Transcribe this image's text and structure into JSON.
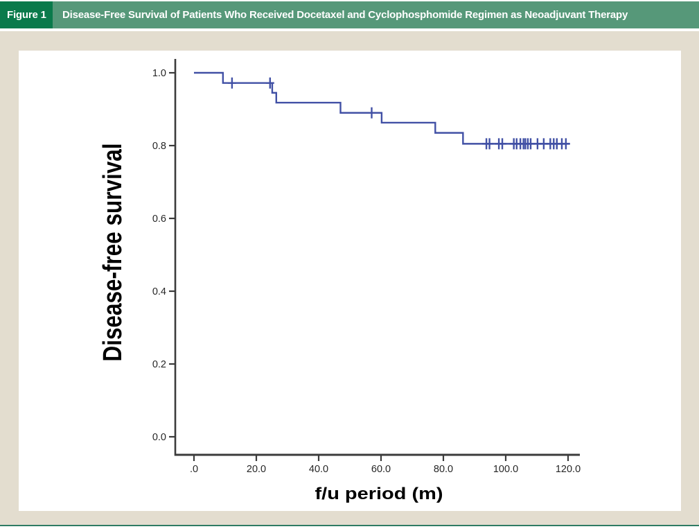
{
  "figure_header": {
    "label": "Figure 1",
    "title": "Disease-Free Survival of Patients Who Received Docetaxel and Cyclophosphomide Regimen as Neoadjuvant Therapy"
  },
  "colors": {
    "header_dark_green": "#0a7a4b",
    "header_light_green": "#569879",
    "page_beige": "#e3ddcf",
    "bottom_rule_green": "#2e7b63",
    "panel_white": "#ffffff",
    "curve_blue": "#4150a5",
    "axis_gray": "#3b3b3b",
    "tick_label_color": "#262626",
    "axis_title_color": "#000000"
  },
  "chart_data": {
    "type": "line",
    "subtype": "kaplan-meier-step-function",
    "title": "",
    "xlabel": "f/u period (m)",
    "ylabel": "Disease-free survival",
    "x_ticks": [
      ".0",
      "20.0",
      "40.0",
      "60.0",
      "80.0",
      "100.0",
      "120.0"
    ],
    "x_tick_values": [
      0,
      20,
      40,
      60,
      80,
      100,
      120
    ],
    "y_ticks": [
      "1.0",
      "0.8",
      "0.6",
      "0.4",
      "0.2",
      "0.0"
    ],
    "y_tick_values": [
      1.0,
      0.8,
      0.6,
      0.4,
      0.2,
      0.0
    ],
    "xlim": [
      0,
      120
    ],
    "ylim": [
      0.0,
      1.0
    ],
    "grid": "off",
    "legend": "none",
    "steps": [
      {
        "x": 0,
        "y": 1.0
      },
      {
        "x": 9.3,
        "y": 0.972
      },
      {
        "x": 25.1,
        "y": 0.945
      },
      {
        "x": 26.4,
        "y": 0.918
      },
      {
        "x": 47.0,
        "y": 0.89
      },
      {
        "x": 60.2,
        "y": 0.863
      },
      {
        "x": 77.4,
        "y": 0.835
      },
      {
        "x": 86.3,
        "y": 0.805
      }
    ],
    "curve_end_x": 120.4,
    "censor_marks": [
      {
        "x": 12.2,
        "y": 0.972
      },
      {
        "x": 24.4,
        "y": 0.972
      },
      {
        "x": 57.0,
        "y": 0.89
      },
      {
        "x": 93.8,
        "y": 0.805
      },
      {
        "x": 94.8,
        "y": 0.805
      },
      {
        "x": 97.8,
        "y": 0.805
      },
      {
        "x": 98.9,
        "y": 0.805
      },
      {
        "x": 102.6,
        "y": 0.805
      },
      {
        "x": 103.5,
        "y": 0.805
      },
      {
        "x": 104.7,
        "y": 0.805
      },
      {
        "x": 105.7,
        "y": 0.805
      },
      {
        "x": 106.3,
        "y": 0.805
      },
      {
        "x": 107.1,
        "y": 0.805
      },
      {
        "x": 108.0,
        "y": 0.805
      },
      {
        "x": 110.2,
        "y": 0.805
      },
      {
        "x": 112.2,
        "y": 0.805
      },
      {
        "x": 114.3,
        "y": 0.805
      },
      {
        "x": 115.4,
        "y": 0.805
      },
      {
        "x": 116.4,
        "y": 0.805
      },
      {
        "x": 118.0,
        "y": 0.805
      },
      {
        "x": 119.3,
        "y": 0.805
      }
    ]
  }
}
